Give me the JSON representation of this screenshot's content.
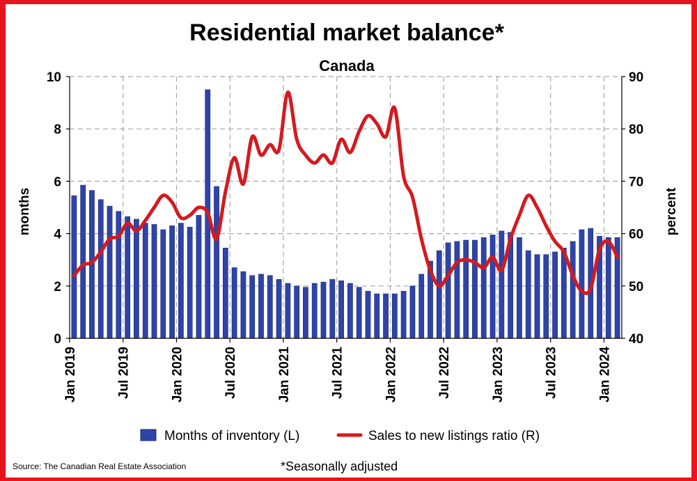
{
  "colors": {
    "frame": "#e8141b",
    "bar": "#2f44a8",
    "bar_edge": "#1c2a78",
    "line": "#d41a1f",
    "grid": "#a6a6a6"
  },
  "chart_data": {
    "type": "bar",
    "title": "Residential market balance*",
    "subtitle": "Canada",
    "ylabel": "months",
    "y2label": "percent",
    "ylim": [
      0,
      10
    ],
    "y2lim": [
      40,
      90
    ],
    "yticks": [
      "0",
      "2",
      "4",
      "6",
      "8",
      "10"
    ],
    "y2ticks": [
      "40",
      "50",
      "60",
      "70",
      "80",
      "90"
    ],
    "xtick_labels": [
      "Jan 2019",
      "Jul 2019",
      "Jan 2020",
      "Jul 2020",
      "Jan 2021",
      "Jul 2021",
      "Jan 2022",
      "Jul 2022",
      "Jan 2023",
      "Jul 2023",
      "Jan 2024"
    ],
    "grid": true,
    "legend_position": "bottom",
    "categories": [
      "2019-01",
      "2019-02",
      "2019-03",
      "2019-04",
      "2019-05",
      "2019-06",
      "2019-07",
      "2019-08",
      "2019-09",
      "2019-10",
      "2019-11",
      "2019-12",
      "2020-01",
      "2020-02",
      "2020-03",
      "2020-04",
      "2020-05",
      "2020-06",
      "2020-07",
      "2020-08",
      "2020-09",
      "2020-10",
      "2020-11",
      "2020-12",
      "2021-01",
      "2021-02",
      "2021-03",
      "2021-04",
      "2021-05",
      "2021-06",
      "2021-07",
      "2021-08",
      "2021-09",
      "2021-10",
      "2021-11",
      "2021-12",
      "2022-01",
      "2022-02",
      "2022-03",
      "2022-04",
      "2022-05",
      "2022-06",
      "2022-07",
      "2022-08",
      "2022-09",
      "2022-10",
      "2022-11",
      "2022-12",
      "2023-01",
      "2023-02",
      "2023-03",
      "2023-04",
      "2023-05",
      "2023-06",
      "2023-07",
      "2023-08",
      "2023-09",
      "2023-10",
      "2023-11",
      "2023-12",
      "2024-01",
      "2024-02"
    ],
    "series": [
      {
        "name": "Months of inventory (L)",
        "type": "bar",
        "axis": "left",
        "values": [
          5.45,
          5.85,
          5.65,
          5.3,
          5.05,
          4.85,
          4.65,
          4.55,
          4.4,
          4.35,
          4.15,
          4.3,
          4.4,
          4.25,
          4.7,
          9.5,
          5.8,
          3.45,
          2.7,
          2.55,
          2.4,
          2.45,
          2.4,
          2.25,
          2.1,
          2.0,
          1.95,
          2.1,
          2.15,
          2.25,
          2.2,
          2.1,
          1.95,
          1.8,
          1.7,
          1.7,
          1.7,
          1.8,
          2.0,
          2.45,
          2.95,
          3.35,
          3.65,
          3.7,
          3.75,
          3.75,
          3.85,
          3.95,
          4.1,
          4.05,
          3.85,
          3.35,
          3.2,
          3.2,
          3.3,
          3.45,
          3.7,
          4.15,
          4.2,
          3.9,
          3.85,
          3.85
        ]
      },
      {
        "name": "Sales to new listings ratio (R)",
        "type": "line",
        "axis": "right",
        "values": [
          52.0,
          54.0,
          54.5,
          56.5,
          59.0,
          59.5,
          62.0,
          60.5,
          62.5,
          65.0,
          67.3,
          66.0,
          63.0,
          63.5,
          65.0,
          64.0,
          59.0,
          68.0,
          74.5,
          69.5,
          78.5,
          75.0,
          77.0,
          76.0,
          87.0,
          78.0,
          75.0,
          73.5,
          75.0,
          73.5,
          78.0,
          75.5,
          79.5,
          82.5,
          81.0,
          78.5,
          84.0,
          71.0,
          67.0,
          59.0,
          53.0,
          50.0,
          52.0,
          54.5,
          55.0,
          54.5,
          53.5,
          55.5,
          53.0,
          59.0,
          63.5,
          67.3,
          65.0,
          61.5,
          58.5,
          56.5,
          52.0,
          49.0,
          49.5,
          57.0,
          58.5,
          55.5
        ]
      }
    ]
  },
  "footer": {
    "source": "Source: The Canadian Real Estate Association",
    "note": "*Seasonally adjusted"
  }
}
